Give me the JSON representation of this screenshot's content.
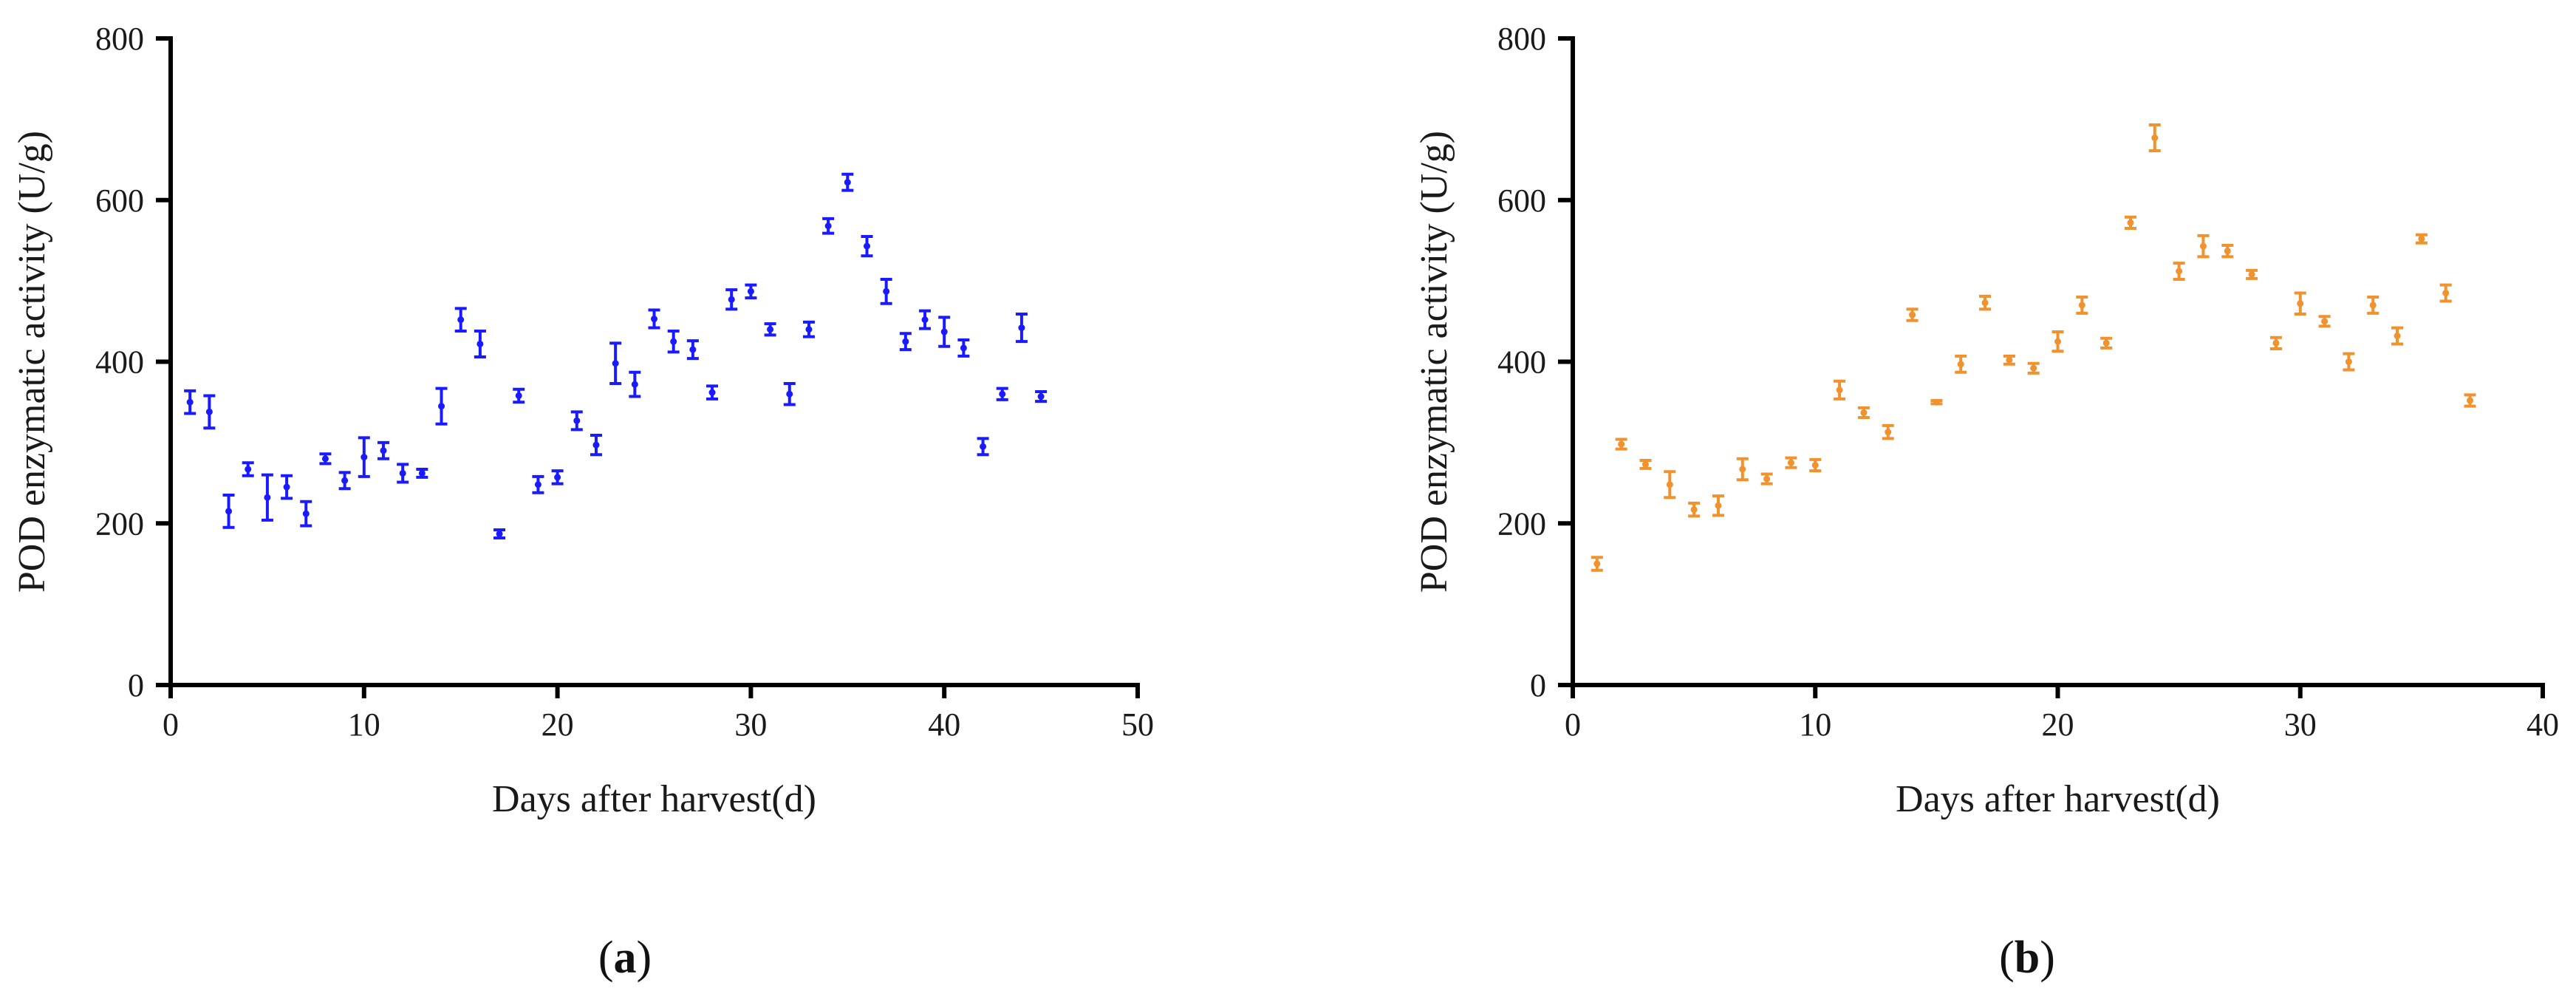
{
  "chart_data": [
    {
      "type": "scatter",
      "panel_label": "(a)",
      "xlabel": "Days after harvest(d)",
      "ylabel": "POD enzymatic activity (U/g)",
      "xlim": [
        0,
        50
      ],
      "ylim": [
        0,
        800
      ],
      "x_ticks": [
        0,
        10,
        20,
        30,
        40,
        50
      ],
      "y_ticks": [
        0,
        200,
        400,
        600,
        800
      ],
      "x_tick_labels": [
        "0",
        "10",
        "20",
        "30",
        "40",
        "50"
      ],
      "y_tick_labels": [
        "0",
        "200",
        "400",
        "600",
        "800"
      ],
      "grid": false,
      "color": "#1a1aff",
      "series": [
        {
          "x": [
            1,
            2,
            3,
            4,
            5,
            6,
            7,
            8,
            9,
            10,
            11,
            12,
            13,
            14,
            15,
            16,
            17,
            18,
            19,
            20,
            21,
            22,
            23,
            24,
            25,
            26,
            27,
            28,
            29,
            30,
            31,
            32,
            33,
            34,
            35,
            36,
            37,
            38,
            39,
            40,
            41,
            42,
            43,
            44,
            45
          ],
          "y": [
            350,
            338,
            215,
            267,
            232,
            245,
            212,
            280,
            253,
            282,
            290,
            262,
            262,
            345,
            452,
            422,
            187,
            358,
            248,
            257,
            327,
            297,
            398,
            372,
            453,
            425,
            415,
            362,
            477,
            487,
            440,
            360,
            440,
            568,
            622,
            543,
            487,
            425,
            452,
            437,
            417,
            295,
            360,
            442,
            357
          ],
          "error": [
            14,
            20,
            20,
            8,
            28,
            14,
            15,
            6,
            10,
            24,
            10,
            11,
            5,
            22,
            14,
            16,
            5,
            8,
            10,
            8,
            11,
            12,
            25,
            15,
            11,
            13,
            11,
            8,
            12,
            8,
            7,
            13,
            9,
            9,
            10,
            12,
            15,
            10,
            11,
            18,
            10,
            10,
            7,
            17,
            6
          ]
        }
      ]
    },
    {
      "type": "scatter",
      "panel_label": "(b)",
      "xlabel": "Days after harvest(d)",
      "ylabel": "POD enzymatic activity (U/g)",
      "xlim": [
        0,
        40
      ],
      "ylim": [
        0,
        800
      ],
      "x_ticks": [
        0,
        10,
        20,
        30,
        40
      ],
      "y_ticks": [
        0,
        200,
        400,
        600,
        800
      ],
      "x_tick_labels": [
        "0",
        "10",
        "20",
        "30",
        "40"
      ],
      "y_tick_labels": [
        "0",
        "200",
        "400",
        "600",
        "800"
      ],
      "grid": false,
      "color": "#f0922e",
      "series": [
        {
          "x": [
            1,
            2,
            3,
            4,
            5,
            6,
            7,
            8,
            9,
            10,
            11,
            12,
            13,
            14,
            15,
            16,
            17,
            18,
            19,
            20,
            21,
            22,
            23,
            24,
            25,
            26,
            27,
            28,
            29,
            30,
            31,
            32,
            33,
            34,
            35,
            36,
            37
          ],
          "y": [
            150,
            298,
            273,
            248,
            217,
            222,
            267,
            255,
            275,
            272,
            365,
            337,
            313,
            458,
            350,
            397,
            473,
            402,
            392,
            425,
            470,
            423,
            572,
            677,
            512,
            543,
            537,
            508,
            423,
            472,
            450,
            400,
            470,
            432,
            552,
            485,
            352
          ],
          "error": [
            8,
            6,
            5,
            16,
            8,
            12,
            13,
            6,
            6,
            7,
            11,
            6,
            8,
            7,
            2,
            10,
            8,
            5,
            6,
            12,
            10,
            6,
            7,
            16,
            10,
            13,
            7,
            5,
            7,
            13,
            6,
            10,
            10,
            10,
            5,
            10,
            7
          ]
        }
      ]
    }
  ]
}
